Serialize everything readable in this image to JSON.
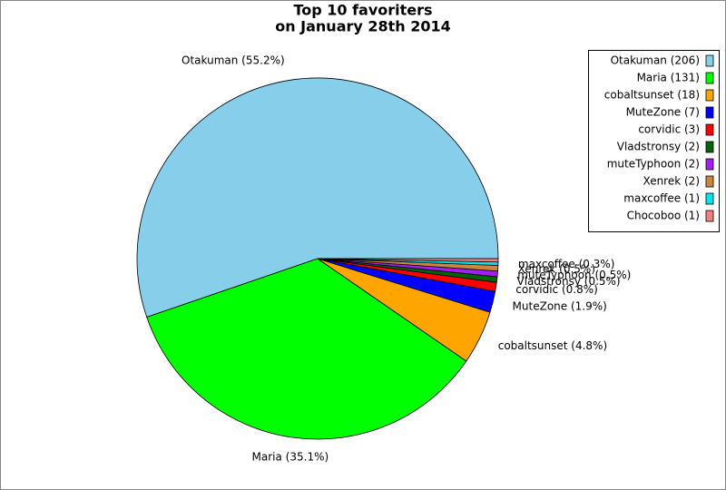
{
  "chart_data": {
    "type": "pie",
    "title": [
      "Top 10 favoriters",
      "on January 28th 2014"
    ],
    "categories": [
      "Otakuman (206)",
      "Maria (131)",
      "cobaltsunset (18)",
      "MuteZone (7)",
      "corvidic (3)",
      "Vladstronsy (2)",
      "muteTyphoon (2)",
      "Xenrek (2)",
      "maxcoffee (1)",
      "Chocoboo (1)"
    ],
    "values": [
      55.2,
      35.1,
      4.8,
      1.9,
      0.8,
      0.5,
      0.5,
      0.5,
      0.3,
      0.3
    ],
    "value_labels": [
      "Otakuman (55.2%)",
      "Maria (35.1%)",
      "cobaltsunset (4.8%)",
      "MuteZone (1.9%)",
      "corvidic (0.8%)",
      "Vladstronsy (0.5%)",
      "muteTyphoon (0.5%)",
      "Xenrek (0.5%)",
      "maxcoffee (0.3%)",
      null
    ],
    "colors": [
      "#87ceeb",
      "#00ff00",
      "#ffa500",
      "#0000ff",
      "#ff0000",
      "#006400",
      "#a020f0",
      "#cd853f",
      "#00e5ee",
      "#f08080"
    ],
    "legend": "upper right"
  }
}
